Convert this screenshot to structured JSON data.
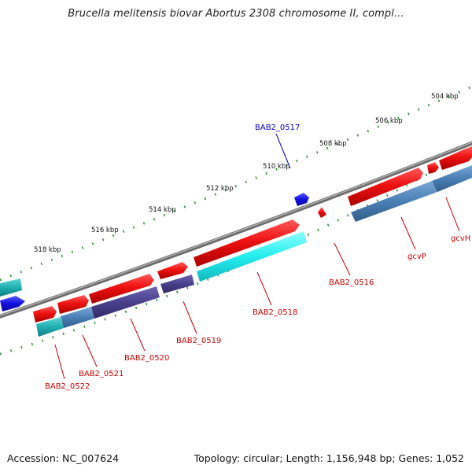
{
  "title": "Brucella melitensis biovar Abortus 2308 chromosome II, compl...",
  "footer": {
    "accession": "Accession: NC_007624",
    "summary": "Topology: circular; Length: 1,156,948 bp; Genes: 1,052"
  },
  "colors": {
    "forward_gene": "#ee1111",
    "reverse_gene_steel": "#4a7fb5",
    "reverse_gene_indigo": "#4a3f8c",
    "reverse_gene_cyan": "#22eeee",
    "reverse_gene_teal": "#20b0b0",
    "small_gene_blue": "#1010e0",
    "backbone": "#777777",
    "tick": "#2a8a2a",
    "label_red": "#cc0000",
    "label_blue": "#0000cc"
  },
  "ruler": [
    {
      "label": "504 kbp"
    },
    {
      "label": "506 kbp"
    },
    {
      "label": "508 kbp"
    },
    {
      "label": "510 kbp"
    },
    {
      "label": "512 kbp"
    },
    {
      "label": "514 kbp"
    },
    {
      "label": "516 kbp"
    },
    {
      "label": "518 kbp"
    }
  ],
  "gene_labels": [
    {
      "name": "BAB2_0517"
    },
    {
      "name": "BAB2_0516"
    },
    {
      "name": "gcvP"
    },
    {
      "name": "gcvH"
    },
    {
      "name": "BAB2_0518"
    },
    {
      "name": "BAB2_0519"
    },
    {
      "name": "BAB2_0520"
    },
    {
      "name": "BAB2_0521"
    },
    {
      "name": "BAB2_0522"
    }
  ]
}
